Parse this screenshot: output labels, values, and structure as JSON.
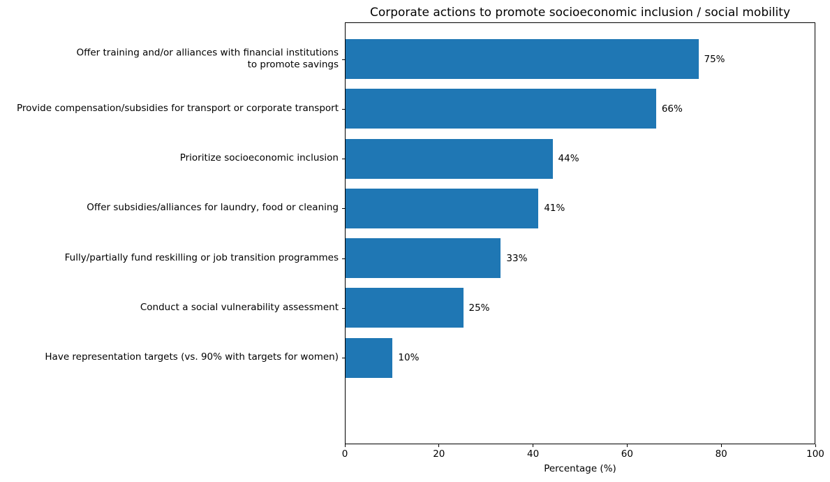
{
  "chart_data": {
    "type": "bar",
    "orientation": "horizontal",
    "title": "Corporate actions to promote socioeconomic inclusion / social mobility",
    "xlabel": "Percentage (%)",
    "ylabel": "",
    "categories": [
      "Offer training and/or alliances with financial institutions\nto promote savings",
      "Provide compensation/subsidies for transport or corporate transport",
      "Prioritize socioeconomic inclusion",
      "Offer subsidies/alliances for laundry, food or cleaning",
      "Fully/partially fund reskilling or job transition programmes",
      "Conduct a social vulnerability assessment",
      "Have representation targets (vs. 90% with targets for women)"
    ],
    "values": [
      75,
      66,
      44,
      41,
      33,
      25,
      10
    ],
    "value_labels": [
      "75%",
      "66%",
      "44%",
      "41%",
      "33%",
      "25%",
      "10%"
    ],
    "xlim": [
      0,
      100
    ],
    "xticks": [
      0,
      20,
      40,
      60,
      80,
      100
    ],
    "xtick_labels": [
      "0",
      "20",
      "40",
      "60",
      "80",
      "100"
    ],
    "bar_color": "#1f77b4",
    "text_color": "#000000",
    "background_color": "#ffffff",
    "grid": false,
    "legend": null
  }
}
